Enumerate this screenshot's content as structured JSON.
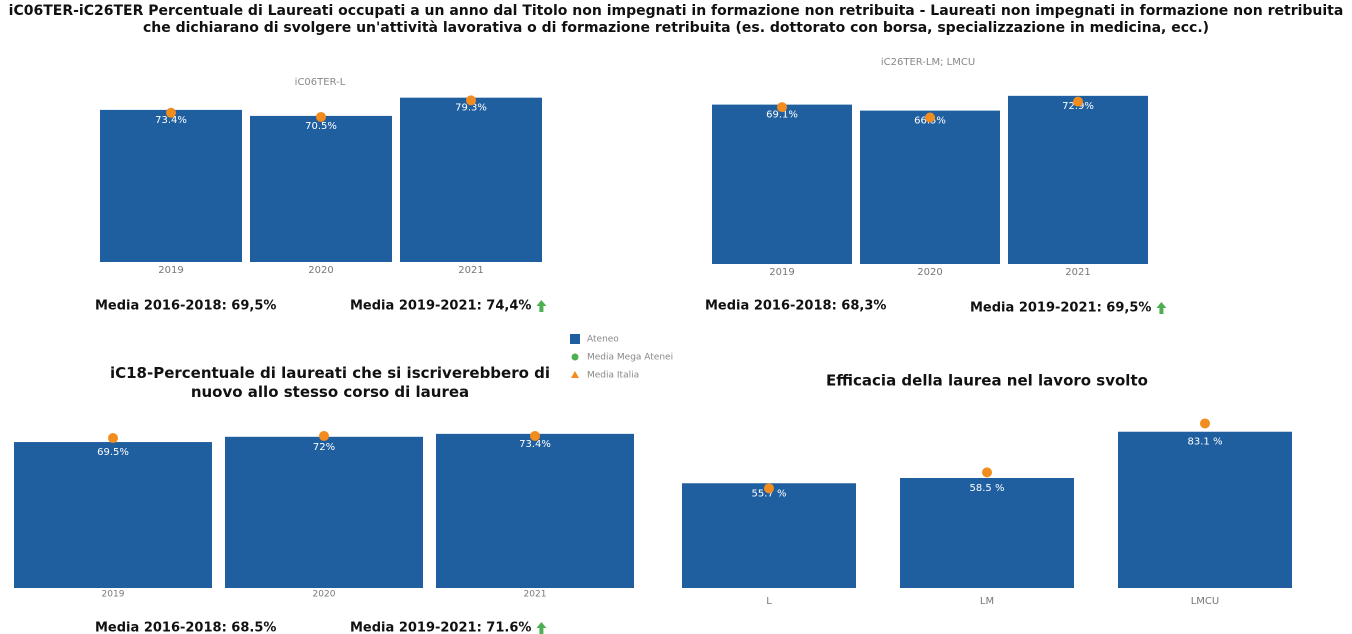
{
  "title": "iC06TER-iC26TER Percentuale di Laureati occupati a un anno dal Titolo non impegnati in formazione non retribuita - Laureati non impegnati in formazione non retribuita che dichiarano di svolgere un'attività lavorativa o di formazione retribuita (es. dottorato con borsa, specializzazione in medicina, ecc.)",
  "legend": [
    {
      "name": "Ateneo",
      "color": "#1f5fa0",
      "marker": "square"
    },
    {
      "name": "Media Mega Atenei",
      "color": "#4caf50",
      "marker": "circle"
    },
    {
      "name": "Media Italia",
      "color": "#f28c1e",
      "marker": "triangle"
    }
  ],
  "chart_data": [
    {
      "type": "bar",
      "title": "iC06TER-L",
      "categories": [
        "2019",
        "2020",
        "2021"
      ],
      "series": [
        {
          "color": "#1f5fa0",
          "values": [
            73.4,
            70.5,
            79.3
          ],
          "value_labels": [
            "73.4%",
            "70.5%",
            "79.3%"
          ]
        },
        {
          "color": "#f28c1e",
          "values": [
            72,
            70,
            78
          ]
        }
      ],
      "ylim": [
        0,
        83
      ],
      "notes": [
        "Media 2016-2018: 69,5%",
        "Media 2019-2021: 74,4%"
      ]
    },
    {
      "type": "bar",
      "title": "iC26TER-LM; LMCU",
      "categories": [
        "2019",
        "2020",
        "2021"
      ],
      "series": [
        {
          "color": "#1f5fa0",
          "values": [
            69.1,
            66.5,
            72.9
          ],
          "value_labels": [
            "69.1%",
            "66.5%",
            "72.9%"
          ]
        },
        {
          "color": "#f28c1e",
          "values": [
            68,
            63.5,
            70.4
          ]
        }
      ],
      "ylim": [
        0,
        75
      ],
      "notes": [
        "Media 2016-2018: 68,3%",
        "Media 2019-2021: 69,5%"
      ]
    },
    {
      "type": "bar",
      "title": "iC18-Percentuale di laureati che si iscriverebbero di nuovo allo stesso corso di laurea",
      "categories": [
        "2019",
        "2020",
        "2021"
      ],
      "series": [
        {
          "color": "#1f5fa0",
          "values": [
            69.5,
            72,
            73.4
          ],
          "value_labels": [
            "69.5%",
            "72%",
            "73.4%"
          ]
        },
        {
          "color": "#f28c1e",
          "values": [
            71.4,
            72.4,
            72.4
          ]
        }
      ],
      "ylim": [
        0,
        80
      ],
      "notes": [
        "Media 2016-2018: 68.5%",
        "Media 2019-2021: 71.6%"
      ]
    },
    {
      "type": "bar",
      "title": "Efficacia della laurea nel lavoro svolto",
      "categories": [
        "L",
        "LM",
        "LMCU"
      ],
      "series": [
        {
          "color": "#1f5fa0",
          "values": [
            55.7,
            58.5,
            83.1
          ],
          "value_labels": [
            "55.7 %",
            "58.5 %",
            "83.1 %"
          ]
        },
        {
          "color": "#f28c1e",
          "values": [
            53,
            61.5,
            87.5
          ]
        }
      ],
      "ylim": [
        0,
        92
      ]
    }
  ]
}
